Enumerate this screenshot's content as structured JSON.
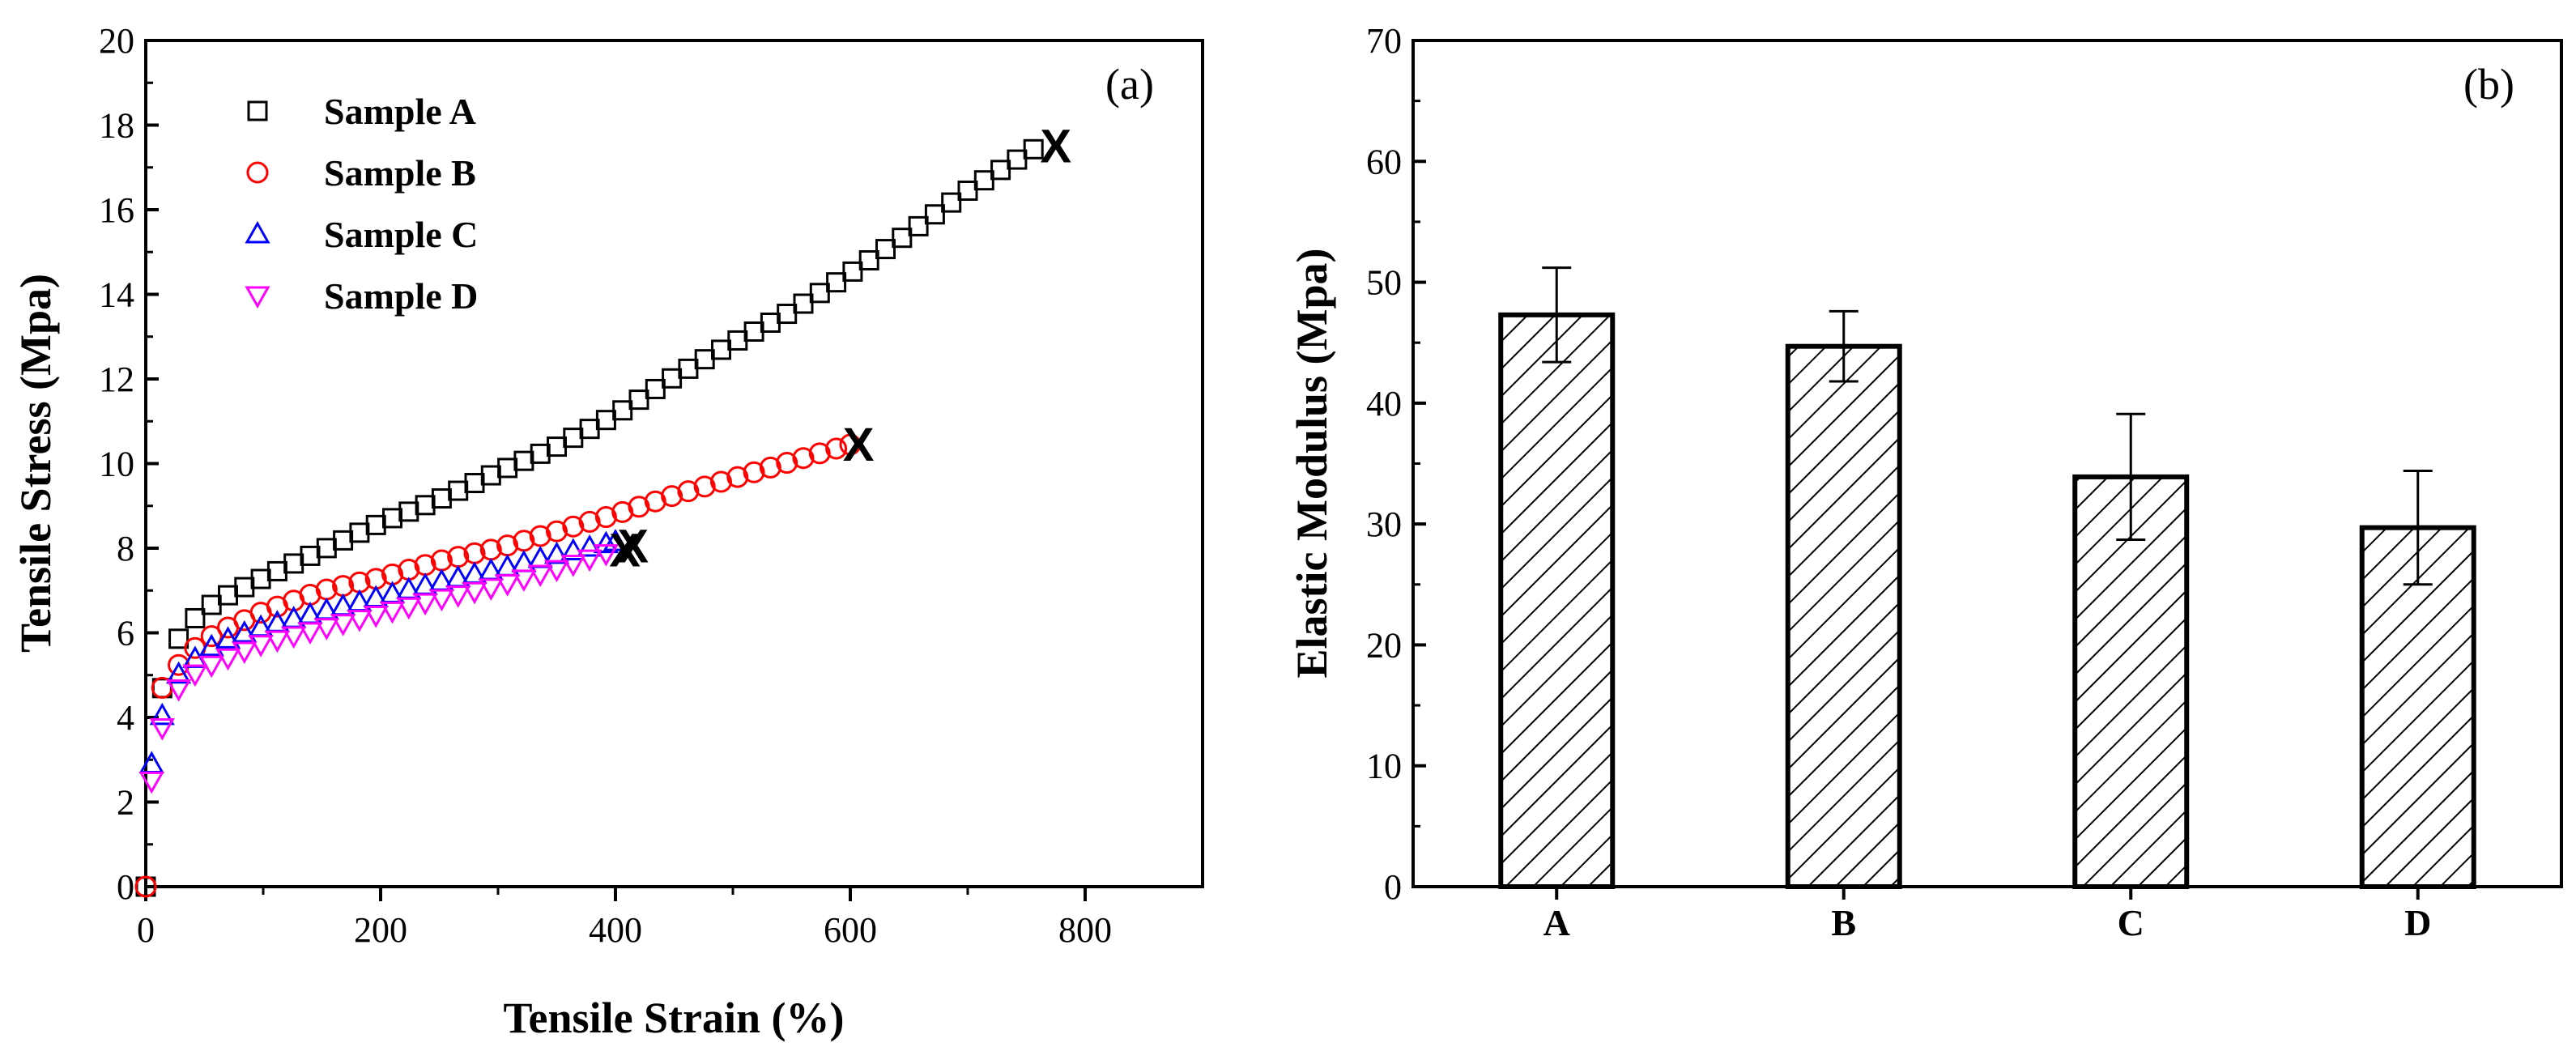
{
  "chart_data": [
    {
      "type": "scatter",
      "panel_label": "(a)",
      "xlabel": "Tensile Strain (%)",
      "ylabel": "Tensile Stress (Mpa)",
      "xlim": [
        0,
        900
      ],
      "ylim": [
        0,
        20
      ],
      "x_ticks": [
        0,
        200,
        400,
        600,
        800
      ],
      "x_tick_labels": [
        "0",
        "200",
        "400",
        "600",
        "800"
      ],
      "y_ticks": [
        0,
        2,
        4,
        6,
        8,
        10,
        12,
        14,
        16,
        18,
        20
      ],
      "y_tick_labels": [
        "0",
        "2",
        "4",
        "6",
        "8",
        "10",
        "12",
        "14",
        "16",
        "18",
        "20"
      ],
      "legend_position": "top-left",
      "break_mark_symbol": "X",
      "series": [
        {
          "name": "Sample A",
          "marker": "square",
          "color": "#000000",
          "curve": [
            [
              0,
              0
            ],
            [
              12,
              4.5
            ],
            [
              25,
              5.75
            ],
            [
              40,
              6.3
            ],
            [
              60,
              6.75
            ],
            [
              100,
              7.3
            ],
            [
              150,
              7.95
            ],
            [
              200,
              8.6
            ],
            [
              250,
              9.15
            ],
            [
              300,
              9.8
            ],
            [
              350,
              10.4
            ],
            [
              400,
              11.15
            ],
            [
              450,
              12.05
            ],
            [
              500,
              12.85
            ],
            [
              550,
              13.6
            ],
            [
              600,
              14.5
            ],
            [
              650,
              15.45
            ],
            [
              700,
              16.45
            ],
            [
              760,
              17.5
            ]
          ],
          "break": [
            775,
            17.5
          ]
        },
        {
          "name": "Sample B",
          "marker": "circle",
          "color": "#ff0000",
          "curve": [
            [
              0,
              0
            ],
            [
              10,
              4.5
            ],
            [
              20,
              5.0
            ],
            [
              40,
              5.6
            ],
            [
              60,
              6.0
            ],
            [
              100,
              6.5
            ],
            [
              150,
              7.0
            ],
            [
              200,
              7.3
            ],
            [
              250,
              7.7
            ],
            [
              300,
              8.0
            ],
            [
              350,
              8.4
            ],
            [
              400,
              8.8
            ],
            [
              450,
              9.25
            ],
            [
              500,
              9.65
            ],
            [
              550,
              10.05
            ],
            [
              600,
              10.45
            ]
          ],
          "break": [
            607,
            10.45
          ]
        },
        {
          "name": "Sample C",
          "marker": "triangle-up",
          "color": "#0000ff",
          "curve": [
            [
              5,
              2.9
            ],
            [
              20,
              4.8
            ],
            [
              40,
              5.35
            ],
            [
              60,
              5.75
            ],
            [
              100,
              6.15
            ],
            [
              150,
              6.5
            ],
            [
              200,
              6.85
            ],
            [
              250,
              7.2
            ],
            [
              300,
              7.5
            ],
            [
              350,
              7.85
            ],
            [
              400,
              8.15
            ]
          ],
          "break": [
            415,
            8.05
          ]
        },
        {
          "name": "Sample D",
          "marker": "triangle-down",
          "color": "#ff00ff",
          "curve": [
            [
              5,
              2.5
            ],
            [
              15,
              3.9
            ],
            [
              25,
              4.6
            ],
            [
              40,
              5.0
            ],
            [
              60,
              5.3
            ],
            [
              100,
              5.75
            ],
            [
              150,
              6.1
            ],
            [
              200,
              6.45
            ],
            [
              250,
              6.8
            ],
            [
              300,
              7.1
            ],
            [
              350,
              7.5
            ],
            [
              395,
              7.9
            ]
          ],
          "break": [
            408,
            7.95
          ]
        }
      ]
    },
    {
      "type": "bar",
      "panel_label": "(b)",
      "xlabel": "",
      "ylabel": "Elastic Modulus (Mpa)",
      "ylim": [
        0,
        70
      ],
      "y_ticks": [
        0,
        10,
        20,
        30,
        40,
        50,
        60,
        70
      ],
      "y_tick_labels": [
        "0",
        "10",
        "20",
        "30",
        "40",
        "50",
        "60",
        "70"
      ],
      "categories": [
        "A",
        "B",
        "C",
        "D"
      ],
      "values": [
        47.3,
        44.7,
        33.9,
        29.7
      ],
      "error_bars": [
        3.9,
        2.9,
        5.2,
        4.7
      ],
      "fill": "diagonal hatch",
      "grid": false
    }
  ]
}
